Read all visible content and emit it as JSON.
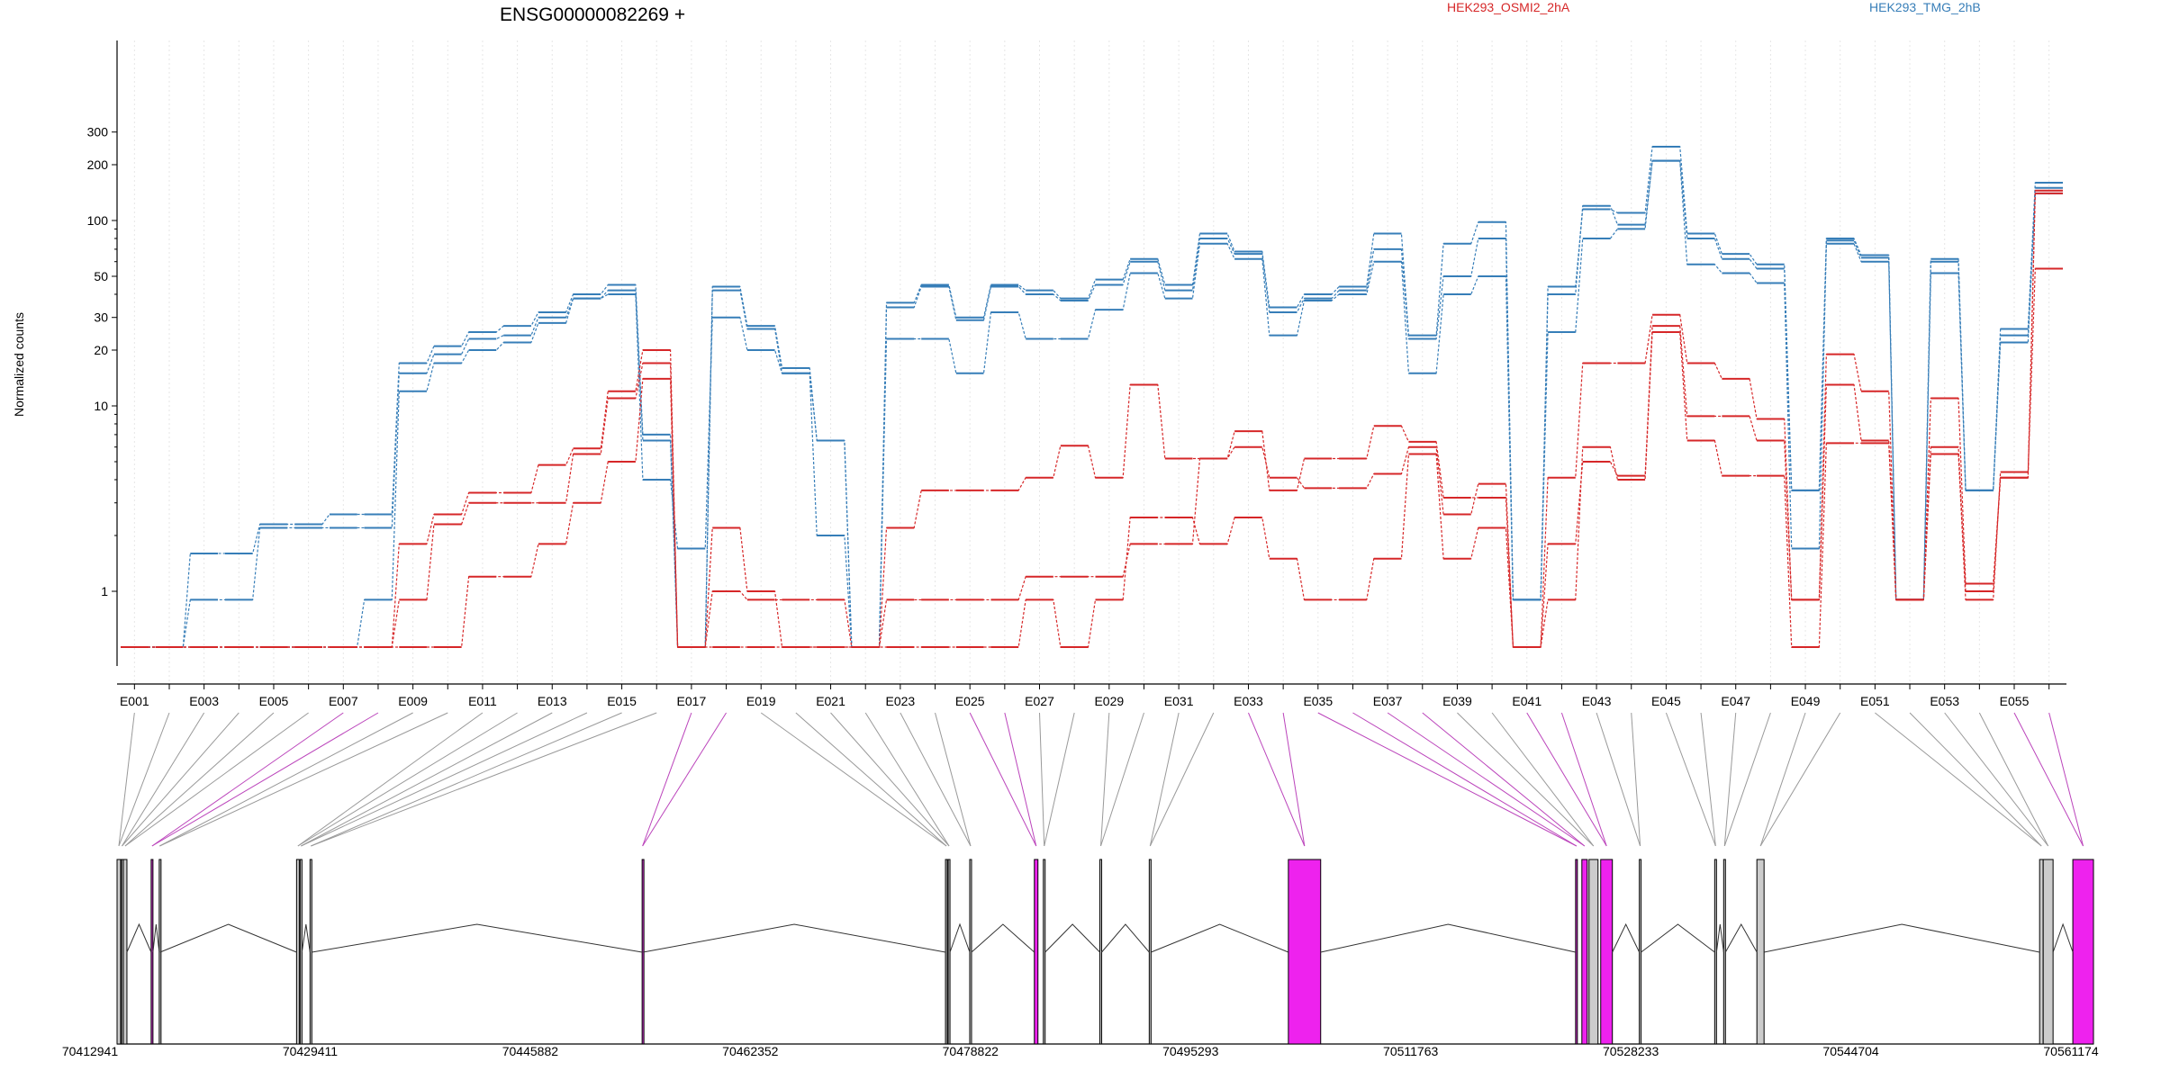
{
  "chart_data": {
    "type": "line",
    "title": "ENSG00000082269 +",
    "ylabel": "Normalized counts",
    "y_scale": "log",
    "y_ticks": [
      1,
      10,
      20,
      30,
      50,
      100,
      200,
      300
    ],
    "conditions": [
      {
        "name": "HEK293_OSMI2_2hA",
        "color": "#d62728"
      },
      {
        "name": "HEK293_TMG_2hB",
        "color": "#377eb8"
      }
    ],
    "x_labels_shown": [
      "E001",
      "E003",
      "E005",
      "E007",
      "E009",
      "E011",
      "E013",
      "E015",
      "E017",
      "E019",
      "E021",
      "E023",
      "E025",
      "E027",
      "E029",
      "E031",
      "E033",
      "E035",
      "E037",
      "E039",
      "E041",
      "E043",
      "E045",
      "E047",
      "E049",
      "E051",
      "E053",
      "E055"
    ],
    "series": [
      {
        "condition": "HEK293_TMG_2hB",
        "values": [
          0.5,
          0.5,
          1.6,
          1.6,
          2.3,
          2.3,
          2.6,
          2.6,
          17,
          21,
          25,
          27,
          32,
          40,
          45,
          7,
          0.5,
          44,
          27,
          16,
          6.5,
          0.5,
          36,
          45,
          30,
          45,
          42,
          38,
          48,
          62,
          45,
          85,
          68,
          34,
          40,
          44,
          85,
          24,
          75,
          98,
          0.9,
          44,
          115,
          110,
          250,
          85,
          66,
          58,
          3.5,
          80,
          65,
          0.9,
          62,
          3.5,
          26,
          160
        ]
      },
      {
        "condition": "HEK293_TMG_2hB",
        "values": [
          0.5,
          0.5,
          0.9,
          0.9,
          2.2,
          2.2,
          2.2,
          2.2,
          15,
          19,
          23,
          24,
          30,
          38,
          42,
          6.5,
          0.5,
          42,
          26,
          15,
          6.5,
          0.5,
          34,
          44,
          29,
          44,
          40,
          37,
          45,
          60,
          42,
          80,
          66,
          32,
          38,
          42,
          70,
          23,
          50,
          80,
          0.9,
          40,
          120,
          95,
          210,
          80,
          62,
          55,
          3.5,
          78,
          63,
          0.9,
          60,
          3.5,
          24,
          150
        ]
      },
      {
        "condition": "HEK293_TMG_2hB",
        "values": [
          0.5,
          0.5,
          0.5,
          0.5,
          0.5,
          0.5,
          0.5,
          0.9,
          12,
          17,
          20,
          22,
          28,
          38,
          40,
          4,
          1.7,
          30,
          20,
          15,
          2,
          0.5,
          23,
          23,
          15,
          32,
          23,
          23,
          33,
          52,
          38,
          75,
          62,
          24,
          37,
          40,
          60,
          15,
          40,
          50,
          0.9,
          25,
          80,
          90,
          210,
          58,
          52,
          46,
          1.7,
          75,
          60,
          0.9,
          52,
          3.5,
          22,
          140
        ]
      },
      {
        "condition": "HEK293_OSMI2_2hA",
        "values": [
          0.5,
          0.5,
          0.5,
          0.5,
          0.5,
          0.5,
          0.5,
          0.5,
          1.8,
          2.6,
          3.4,
          3.4,
          4.8,
          5.9,
          12,
          20,
          0.5,
          2.2,
          1,
          0.5,
          0.5,
          0.5,
          2.2,
          3.5,
          3.5,
          3.5,
          4.1,
          6.1,
          4.1,
          13,
          5.2,
          5.2,
          7.3,
          3.5,
          5.2,
          5.2,
          7.8,
          6.4,
          3.2,
          3.2,
          0.5,
          4.1,
          17,
          17,
          31,
          17,
          14,
          8.5,
          0.9,
          19,
          12,
          0.9,
          11,
          1.1,
          4.1,
          145
        ]
      },
      {
        "condition": "HEK293_OSMI2_2hA",
        "values": [
          0.5,
          0.5,
          0.5,
          0.5,
          0.5,
          0.5,
          0.5,
          0.5,
          0.9,
          2.3,
          3,
          3,
          3,
          5.5,
          11,
          17,
          0.5,
          1,
          0.9,
          0.9,
          0.9,
          0.5,
          0.9,
          0.9,
          0.9,
          0.9,
          1.2,
          1.2,
          1.2,
          1.8,
          1.8,
          5.2,
          6,
          4.1,
          3.6,
          3.6,
          4.3,
          6,
          2.6,
          3.8,
          0.5,
          1.8,
          5,
          4.2,
          27,
          8.8,
          8.8,
          6.5,
          0.9,
          13,
          6.5,
          0.9,
          6,
          1,
          4.1,
          140
        ]
      },
      {
        "condition": "HEK293_OSMI2_2hA",
        "values": [
          0.5,
          0.5,
          0.5,
          0.5,
          0.5,
          0.5,
          0.5,
          0.5,
          0.5,
          0.5,
          1.2,
          1.2,
          1.8,
          3,
          5,
          14,
          0.5,
          0.5,
          0.5,
          0.5,
          0.5,
          0.5,
          0.5,
          0.5,
          0.5,
          0.5,
          0.9,
          0.5,
          0.9,
          2.5,
          2.5,
          1.8,
          2.5,
          1.5,
          0.9,
          0.9,
          1.5,
          5.5,
          1.5,
          2.2,
          0.5,
          0.9,
          6,
          4,
          25,
          6.5,
          4.2,
          4.2,
          0.5,
          6.3,
          6.3,
          0.9,
          5.5,
          0.9,
          4.4,
          55
        ]
      }
    ],
    "coordinate_labels": [
      "70412941",
      "70429411",
      "70445882",
      "70462352",
      "70478822",
      "70495293",
      "70511763",
      "70528233",
      "70544704",
      "70561174"
    ],
    "exon_track": [
      {
        "start": 0,
        "end": 4,
        "color": "#cccccc"
      },
      {
        "start": 5,
        "end": 6,
        "color": "#cccccc"
      },
      {
        "start": 7,
        "end": 11,
        "color": "#cccccc"
      },
      {
        "start": 38,
        "end": 40,
        "color": "#cc33cc"
      },
      {
        "start": 47,
        "end": 48,
        "color": "#cccccc"
      },
      {
        "start": 200,
        "end": 203,
        "color": "#cccccc"
      },
      {
        "start": 204,
        "end": 206,
        "color": "#cccccc"
      },
      {
        "start": 215,
        "end": 217,
        "color": "#cccccc"
      },
      {
        "start": 585,
        "end": 586,
        "color": "#cc33cc"
      },
      {
        "start": 923,
        "end": 925,
        "color": "#cccccc"
      },
      {
        "start": 926,
        "end": 928,
        "color": "#cccccc"
      },
      {
        "start": 950,
        "end": 952,
        "color": "#cccccc"
      },
      {
        "start": 1022,
        "end": 1026,
        "color": "#ee22ee"
      },
      {
        "start": 1032,
        "end": 1034,
        "color": "#cccccc"
      },
      {
        "start": 1095,
        "end": 1097,
        "color": "#cccccc"
      },
      {
        "start": 1150,
        "end": 1152,
        "color": "#cccccc"
      },
      {
        "start": 1305,
        "end": 1341,
        "color": "#ee22ee"
      },
      {
        "start": 1625,
        "end": 1627,
        "color": "#cc33cc"
      },
      {
        "start": 1632,
        "end": 1638,
        "color": "#ee22ee"
      },
      {
        "start": 1640,
        "end": 1650,
        "color": "#cccccc"
      },
      {
        "start": 1653,
        "end": 1666,
        "color": "#ee22ee"
      },
      {
        "start": 1696,
        "end": 1698,
        "color": "#cccccc"
      },
      {
        "start": 1780,
        "end": 1782,
        "color": "#cccccc"
      },
      {
        "start": 1790,
        "end": 1792,
        "color": "#cccccc"
      },
      {
        "start": 1827,
        "end": 1835,
        "color": "#cccccc"
      },
      {
        "start": 2142,
        "end": 2146,
        "color": "#cccccc"
      },
      {
        "start": 2146,
        "end": 2157,
        "color": "#cccccc"
      },
      {
        "start": 2179,
        "end": 2202,
        "color": "#ee22ee"
      }
    ],
    "grid": true,
    "legend": "top-right"
  }
}
